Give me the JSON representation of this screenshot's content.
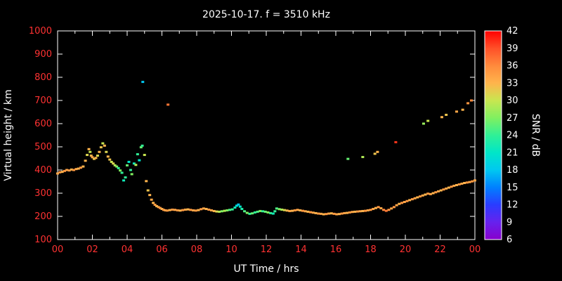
{
  "title": "2025-10-17. f = 3510 kHz",
  "style": {
    "background": "#000000",
    "axis_color": "#ffffff",
    "tick_label_color": "#ff3232",
    "text_color": "#ffffff"
  },
  "axes": {
    "x": {
      "label": "UT Time / hrs",
      "min": 0,
      "max": 24,
      "major_tick_step": 2,
      "minor_tick_step": 1,
      "tick_values": [
        0,
        2,
        4,
        6,
        8,
        10,
        12,
        14,
        16,
        18,
        20,
        22,
        24
      ],
      "tick_labels": [
        "00",
        "02",
        "04",
        "06",
        "08",
        "10",
        "12",
        "14",
        "16",
        "18",
        "20",
        "22",
        "00"
      ]
    },
    "y": {
      "label": "Virtual height / km",
      "min": 100,
      "max": 1000,
      "major_tick_step": 100,
      "tick_values": [
        100,
        200,
        300,
        400,
        500,
        600,
        700,
        800,
        900,
        1000
      ],
      "tick_labels": [
        "100",
        "200",
        "300",
        "400",
        "500",
        "600",
        "700",
        "800",
        "900",
        "1000"
      ]
    }
  },
  "colorbar": {
    "label": "SNR / dB",
    "min": 6,
    "max": 42,
    "tick_values": [
      6,
      9,
      12,
      15,
      18,
      21,
      24,
      27,
      30,
      33,
      36,
      39,
      42
    ],
    "stops": [
      {
        "v": 6,
        "c": "#8800cc"
      },
      {
        "v": 9,
        "c": "#6622ee"
      },
      {
        "v": 12,
        "c": "#2a3cff"
      },
      {
        "v": 15,
        "c": "#0080ff"
      },
      {
        "v": 18,
        "c": "#00c8f0"
      },
      {
        "v": 21,
        "c": "#00e6c8"
      },
      {
        "v": 24,
        "c": "#30f096"
      },
      {
        "v": 27,
        "c": "#80f060"
      },
      {
        "v": 30,
        "c": "#c8e650"
      },
      {
        "v": 33,
        "c": "#ffb44c"
      },
      {
        "v": 36,
        "c": "#ff8a3c"
      },
      {
        "v": 39,
        "c": "#ff5028"
      },
      {
        "v": 42,
        "c": "#ff0000"
      }
    ]
  },
  "chart_data": {
    "type": "scatter",
    "title": "2025-10-17. f = 3510 kHz",
    "xlabel": "UT Time / hrs",
    "ylabel": "Virtual height / km",
    "color_label": "SNR / dB",
    "xlim": [
      0,
      24
    ],
    "ylim": [
      100,
      1000
    ],
    "color_lim": [
      6,
      42
    ],
    "point_format": "[ut_hours, virtual_height_km, snr_db]",
    "points": [
      [
        0.0,
        385,
        34
      ],
      [
        0.13,
        390,
        35
      ],
      [
        0.27,
        392,
        33
      ],
      [
        0.4,
        396,
        35
      ],
      [
        0.53,
        400,
        34
      ],
      [
        0.67,
        398,
        35
      ],
      [
        0.8,
        402,
        33
      ],
      [
        0.93,
        400,
        35
      ],
      [
        1.07,
        404,
        34
      ],
      [
        1.2,
        406,
        33
      ],
      [
        1.33,
        410,
        35
      ],
      [
        1.47,
        415,
        33
      ],
      [
        1.6,
        440,
        33
      ],
      [
        1.7,
        465,
        31
      ],
      [
        1.8,
        490,
        33
      ],
      [
        1.87,
        478,
        30
      ],
      [
        1.93,
        462,
        33
      ],
      [
        2.0,
        455,
        34
      ],
      [
        2.1,
        448,
        32
      ],
      [
        2.2,
        452,
        33
      ],
      [
        2.3,
        462,
        31
      ],
      [
        2.4,
        478,
        33
      ],
      [
        2.5,
        498,
        32
      ],
      [
        2.6,
        515,
        30
      ],
      [
        2.7,
        505,
        33
      ],
      [
        2.8,
        478,
        31
      ],
      [
        2.9,
        458,
        33
      ],
      [
        3.0,
        445,
        32
      ],
      [
        3.1,
        435,
        30
      ],
      [
        3.2,
        428,
        31
      ],
      [
        3.3,
        420,
        29
      ],
      [
        3.4,
        415,
        27
      ],
      [
        3.5,
        408,
        24
      ],
      [
        3.6,
        398,
        27
      ],
      [
        3.7,
        388,
        24
      ],
      [
        3.8,
        355,
        22
      ],
      [
        3.9,
        368,
        24
      ],
      [
        4.0,
        420,
        26
      ],
      [
        4.1,
        435,
        21
      ],
      [
        4.2,
        400,
        24
      ],
      [
        4.27,
        382,
        27
      ],
      [
        4.4,
        428,
        22
      ],
      [
        4.5,
        422,
        29
      ],
      [
        4.6,
        468,
        24
      ],
      [
        4.7,
        442,
        21
      ],
      [
        4.8,
        498,
        26
      ],
      [
        4.87,
        505,
        24
      ],
      [
        4.9,
        780,
        18
      ],
      [
        5.0,
        465,
        30
      ],
      [
        5.1,
        352,
        33
      ],
      [
        5.2,
        312,
        32
      ],
      [
        5.3,
        292,
        33
      ],
      [
        5.4,
        272,
        34
      ],
      [
        5.5,
        258,
        33
      ],
      [
        5.6,
        250,
        35
      ],
      [
        5.7,
        244,
        33
      ],
      [
        5.8,
        240,
        34
      ],
      [
        5.9,
        236,
        35
      ],
      [
        6.0,
        232,
        33
      ],
      [
        6.1,
        228,
        35
      ],
      [
        6.35,
        682,
        37
      ],
      [
        6.2,
        226,
        34
      ],
      [
        6.3,
        225,
        35
      ],
      [
        6.45,
        227,
        33
      ],
      [
        6.6,
        229,
        35
      ],
      [
        6.75,
        228,
        34
      ],
      [
        6.9,
        226,
        35
      ],
      [
        7.05,
        225,
        33
      ],
      [
        7.2,
        227,
        35
      ],
      [
        7.35,
        229,
        34
      ],
      [
        7.5,
        230,
        33
      ],
      [
        7.65,
        228,
        35
      ],
      [
        7.8,
        226,
        34
      ],
      [
        7.95,
        225,
        35
      ],
      [
        8.1,
        227,
        33
      ],
      [
        8.25,
        231,
        35
      ],
      [
        8.4,
        234,
        34
      ],
      [
        8.55,
        232,
        33
      ],
      [
        8.7,
        229,
        35
      ],
      [
        8.85,
        226,
        34
      ],
      [
        9.0,
        223,
        33
      ],
      [
        9.15,
        221,
        31
      ],
      [
        9.3,
        220,
        29
      ],
      [
        9.45,
        222,
        27
      ],
      [
        9.6,
        224,
        29
      ],
      [
        9.75,
        226,
        27
      ],
      [
        9.9,
        228,
        25
      ],
      [
        10.05,
        230,
        24
      ],
      [
        10.2,
        238,
        22
      ],
      [
        10.3,
        246,
        20
      ],
      [
        10.4,
        251,
        18
      ],
      [
        10.5,
        242,
        21
      ],
      [
        10.6,
        232,
        23
      ],
      [
        10.75,
        222,
        25
      ],
      [
        10.9,
        215,
        27
      ],
      [
        11.05,
        211,
        24
      ],
      [
        11.2,
        213,
        26
      ],
      [
        11.35,
        217,
        24
      ],
      [
        11.5,
        220,
        25
      ],
      [
        11.65,
        223,
        27
      ],
      [
        11.8,
        222,
        24
      ],
      [
        11.95,
        220,
        26
      ],
      [
        12.1,
        217,
        27
      ],
      [
        12.25,
        214,
        24
      ],
      [
        12.4,
        212,
        22
      ],
      [
        12.5,
        222,
        24
      ],
      [
        12.6,
        234,
        25
      ],
      [
        12.75,
        231,
        27
      ],
      [
        12.9,
        229,
        29
      ],
      [
        13.05,
        227,
        31
      ],
      [
        13.2,
        225,
        33
      ],
      [
        13.35,
        223,
        34
      ],
      [
        13.5,
        224,
        33
      ],
      [
        13.65,
        226,
        35
      ],
      [
        13.8,
        228,
        34
      ],
      [
        13.95,
        226,
        33
      ],
      [
        14.1,
        224,
        35
      ],
      [
        14.25,
        222,
        34
      ],
      [
        14.4,
        220,
        33
      ],
      [
        14.55,
        218,
        35
      ],
      [
        14.7,
        216,
        34
      ],
      [
        14.85,
        214,
        33
      ],
      [
        15.0,
        212,
        35
      ],
      [
        15.15,
        211,
        34
      ],
      [
        15.3,
        209,
        33
      ],
      [
        15.45,
        210,
        35
      ],
      [
        15.6,
        212,
        34
      ],
      [
        15.75,
        213,
        33
      ],
      [
        15.9,
        211,
        35
      ],
      [
        16.05,
        209,
        34
      ],
      [
        16.2,
        210,
        33
      ],
      [
        16.35,
        212,
        35
      ],
      [
        16.5,
        214,
        34
      ],
      [
        16.65,
        215,
        33
      ],
      [
        16.8,
        217,
        35
      ],
      [
        16.95,
        219,
        34
      ],
      [
        17.1,
        220,
        33
      ],
      [
        17.25,
        221,
        35
      ],
      [
        17.4,
        222,
        34
      ],
      [
        17.55,
        223,
        33
      ],
      [
        17.7,
        224,
        35
      ],
      [
        17.85,
        226,
        34
      ],
      [
        18.0,
        228,
        35
      ],
      [
        18.15,
        232,
        34
      ],
      [
        18.3,
        236,
        33
      ],
      [
        18.45,
        240,
        35
      ],
      [
        18.6,
        235,
        34
      ],
      [
        18.75,
        228,
        36
      ],
      [
        18.9,
        224,
        37
      ],
      [
        16.7,
        448,
        26
      ],
      [
        17.55,
        456,
        29
      ],
      [
        18.25,
        470,
        32
      ],
      [
        18.4,
        478,
        33
      ],
      [
        19.45,
        520,
        40
      ],
      [
        19.05,
        228,
        35
      ],
      [
        19.2,
        234,
        34
      ],
      [
        19.35,
        240,
        35
      ],
      [
        19.5,
        248,
        34
      ],
      [
        19.65,
        254,
        33
      ],
      [
        19.8,
        258,
        35
      ],
      [
        19.95,
        262,
        34
      ],
      [
        20.1,
        266,
        35
      ],
      [
        20.25,
        270,
        33
      ],
      [
        20.4,
        274,
        35
      ],
      [
        20.55,
        278,
        34
      ],
      [
        20.7,
        282,
        33
      ],
      [
        20.85,
        286,
        35
      ],
      [
        21.0,
        290,
        34
      ],
      [
        21.15,
        294,
        33
      ],
      [
        21.3,
        298,
        35
      ],
      [
        21.45,
        296,
        34
      ],
      [
        21.6,
        300,
        33
      ],
      [
        21.75,
        304,
        35
      ],
      [
        21.9,
        308,
        34
      ],
      [
        22.05,
        312,
        33
      ],
      [
        22.2,
        316,
        35
      ],
      [
        22.35,
        320,
        34
      ],
      [
        22.5,
        324,
        33
      ],
      [
        22.65,
        328,
        35
      ],
      [
        22.8,
        332,
        34
      ],
      [
        22.95,
        335,
        33
      ],
      [
        23.1,
        338,
        35
      ],
      [
        23.25,
        341,
        34
      ],
      [
        23.4,
        344,
        33
      ],
      [
        23.55,
        346,
        35
      ],
      [
        23.7,
        348,
        34
      ],
      [
        23.85,
        351,
        35
      ],
      [
        24.0,
        355,
        34
      ],
      [
        21.05,
        600,
        28
      ],
      [
        21.3,
        612,
        30
      ],
      [
        22.1,
        628,
        33
      ],
      [
        22.35,
        638,
        32
      ],
      [
        22.95,
        652,
        34
      ],
      [
        23.3,
        660,
        33
      ],
      [
        23.6,
        688,
        35
      ],
      [
        23.8,
        700,
        36
      ]
    ]
  }
}
